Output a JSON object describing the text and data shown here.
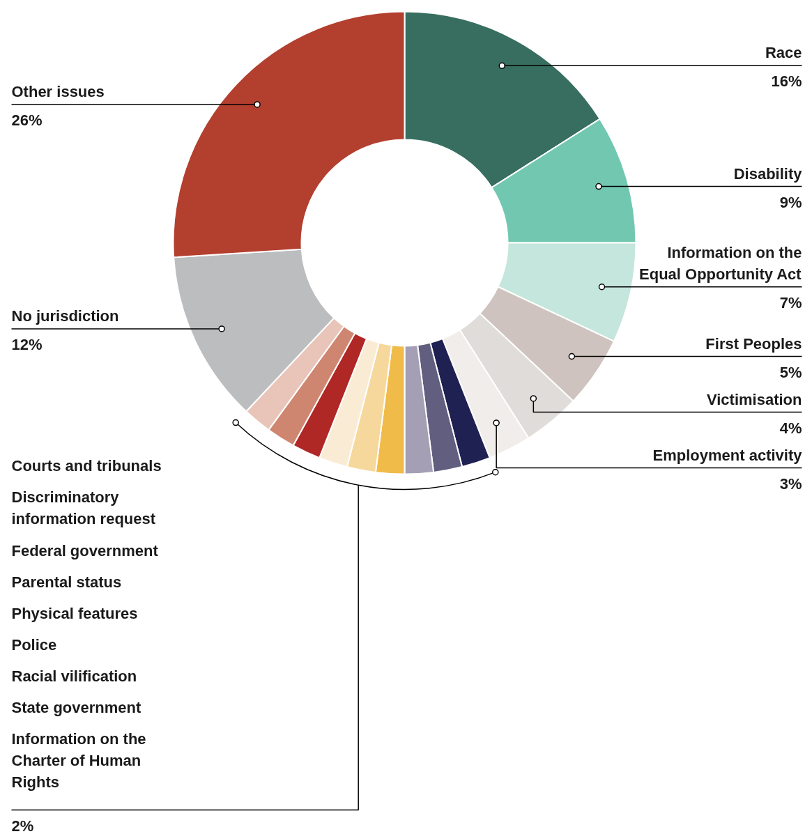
{
  "chart_data": {
    "type": "donut",
    "categories": [
      "Race",
      "Disability",
      "Information on the Equal Opportunity Act",
      "First Peoples",
      "Victimisation",
      "Employment activity",
      null,
      null,
      null,
      null,
      null,
      null,
      null,
      null,
      null,
      "No jurisdiction",
      "Other issues"
    ],
    "values": [
      16,
      9,
      7,
      5,
      4,
      3,
      2,
      2,
      2,
      2,
      2,
      2,
      2,
      2,
      2,
      12,
      26
    ],
    "colors": [
      "#386e5f",
      "#72c7b0",
      "#c5e6dc",
      "#cec3be",
      "#e0dcd9",
      "#f1edea",
      "#1e2152",
      "#625e7f",
      "#a49fb5",
      "#f0bb48",
      "#f6d89c",
      "#faebd4",
      "#b02826",
      "#cf8670",
      "#e8c5b8",
      "#bcbdbf",
      "#b33f2f"
    ],
    "value_labels": [
      "16%",
      "9%",
      "7%",
      "5%",
      "4%",
      "3%",
      null,
      null,
      null,
      null,
      null,
      null,
      null,
      null,
      null,
      "12%",
      "26%"
    ],
    "annotations": [
      "Courts and tribunals",
      "Discriminatory information request",
      "Federal government",
      "Parental status",
      "Physical features",
      "Police",
      "Racial vilification",
      "State government",
      "Information on the Charter of Human Rights",
      "2%"
    ]
  }
}
